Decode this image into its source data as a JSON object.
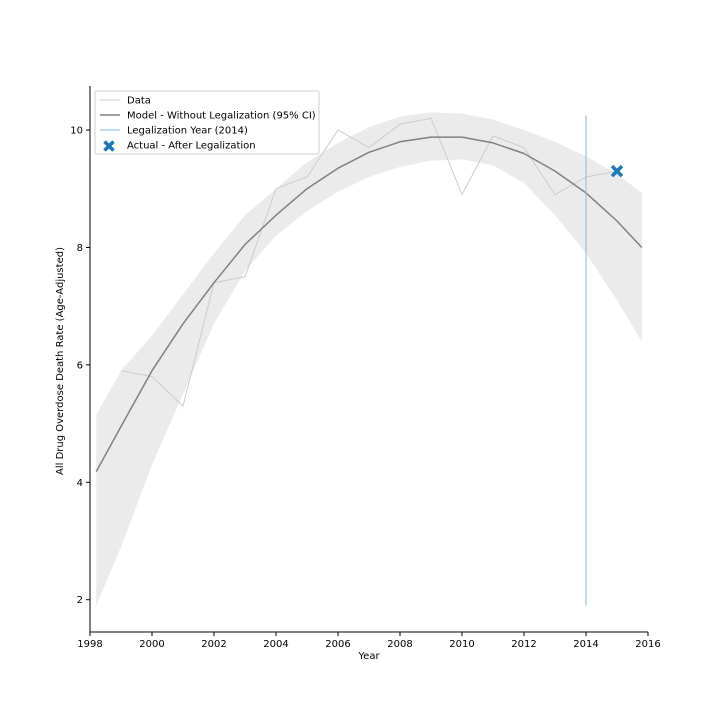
{
  "chart_data": {
    "type": "line",
    "xlabel": "Year",
    "ylabel": "All Drug Overdose Death Rate (Age-Adjusted)",
    "xlim": [
      1998,
      2016
    ],
    "ylim": [
      1.45,
      10.75
    ],
    "xticks": [
      1998,
      2000,
      2002,
      2004,
      2006,
      2008,
      2010,
      2012,
      2014,
      2016
    ],
    "yticks": [
      2,
      4,
      6,
      8,
      10
    ],
    "grid": false,
    "legend_position": "top-left",
    "colors": {
      "data": "#cccccc",
      "model": "#808080",
      "ci_band": "#ebebeb",
      "legalization": "#7fbfdf",
      "actual": "#1f77b4",
      "axis": "#000000"
    },
    "legend": [
      {
        "key": "data",
        "label": "Data"
      },
      {
        "key": "model",
        "label": "Model - Without Legalization (95% CI)"
      },
      {
        "key": "legalization",
        "label": "Legalization Year (2014)"
      },
      {
        "key": "actual",
        "label": "Actual - After Legalization"
      }
    ],
    "series": [
      {
        "key": "data",
        "name": "Data",
        "x": [
          1999,
          2000,
          2001,
          2002,
          2003,
          2004,
          2005,
          2006,
          2007,
          2008,
          2009,
          2010,
          2011,
          2012,
          2013,
          2014,
          2015
        ],
        "y": [
          5.9,
          5.8,
          5.3,
          7.4,
          7.5,
          9.0,
          9.2,
          10.0,
          9.7,
          10.1,
          10.2,
          8.9,
          9.9,
          9.7,
          8.9,
          9.2,
          9.3
        ]
      },
      {
        "key": "model",
        "name": "Model - Without Legalization (95% CI)",
        "x": [
          1998.2,
          1999,
          2000,
          2001,
          2002,
          2003,
          2004,
          2005,
          2006,
          2007,
          2008,
          2009,
          2010,
          2011,
          2012,
          2013,
          2014,
          2015,
          2015.8
        ],
        "y": [
          4.18,
          4.95,
          5.9,
          6.7,
          7.4,
          8.05,
          8.55,
          9.0,
          9.35,
          9.62,
          9.8,
          9.88,
          9.88,
          9.78,
          9.6,
          9.3,
          8.93,
          8.45,
          8.0
        ],
        "ci_lower": [
          1.9,
          2.9,
          4.3,
          5.5,
          6.7,
          7.6,
          8.2,
          8.62,
          8.95,
          9.2,
          9.37,
          9.48,
          9.5,
          9.4,
          9.1,
          8.55,
          7.9,
          7.1,
          6.4
        ],
        "ci_upper": [
          5.15,
          5.9,
          6.5,
          7.2,
          7.9,
          8.55,
          9.0,
          9.45,
          9.78,
          10.05,
          10.23,
          10.3,
          10.28,
          10.18,
          10.0,
          9.8,
          9.55,
          9.25,
          8.93
        ]
      }
    ],
    "legalization_line": {
      "x": 2014,
      "y_range": [
        1.9,
        10.25
      ]
    },
    "actual_points": {
      "x": [
        2015
      ],
      "y": [
        9.3
      ]
    }
  }
}
